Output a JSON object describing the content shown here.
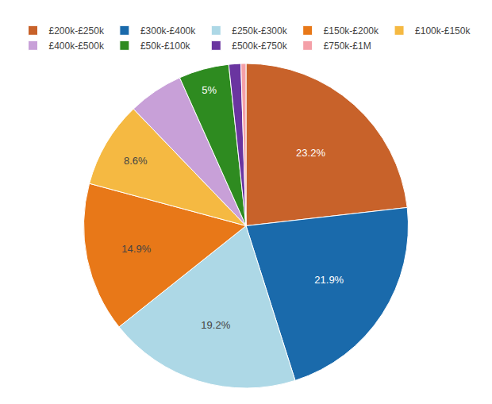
{
  "chart_data": {
    "type": "pie",
    "categories": [
      "£200k-£250k",
      "£300k-£400k",
      "£250k-£300k",
      "£150k-£200k",
      "£100k-£150k",
      "£400k-£500k",
      "£50k-£100k",
      "£500k-£750k",
      "£750k-£1M"
    ],
    "values": [
      23.2,
      21.9,
      19.2,
      14.9,
      8.6,
      5.5,
      5.0,
      1.2,
      0.5
    ],
    "value_labels": [
      "23.2%",
      "21.9%",
      "19.2%",
      "14.9%",
      "8.6%",
      null,
      "5%",
      null,
      null
    ],
    "colors": [
      "#c8622a",
      "#1a6aab",
      "#add8e6",
      "#e87818",
      "#f5b942",
      "#c8a0d8",
      "#2e8b20",
      "#6a35a0",
      "#f4a0a8"
    ],
    "data_labels": true,
    "legend": "top"
  }
}
